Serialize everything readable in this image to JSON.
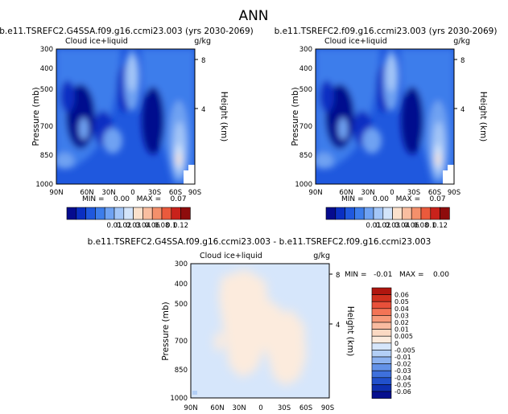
{
  "figure": {
    "title": "ANN"
  },
  "chart_data": [
    {
      "type": "heatmap",
      "title": "b.e11.TSREFC2.G4SSA.f09.g16.ccmi23.003 (yrs 2030-2069)",
      "subtitle_left": "Cloud ice+liquid",
      "units": "g/kg",
      "ylabel": "Pressure (mb)",
      "ylabel_right": "Height (km)",
      "x_ticks": [
        "90N",
        "60N",
        "30N",
        "0",
        "30S",
        "60S",
        "90S"
      ],
      "y_ticks": [
        "300",
        "400",
        "500",
        "700",
        "850",
        "1000"
      ],
      "y_right_ticks": [
        "8",
        "4"
      ],
      "ylim": [
        1000,
        300
      ],
      "min_max_label": "MIN =    0.00   MAX =    0.07",
      "colorbar": {
        "levels": [
          "0.01",
          "0.02",
          "0.03",
          "0.04",
          "0.06",
          "0.08",
          "0.1",
          "0.12"
        ],
        "colors": [
          "#050B8E",
          "#0A2FC2",
          "#1F58DE",
          "#3D7DEB",
          "#6FA2F2",
          "#A4C6F7",
          "#D3E4FA",
          "#FBE1CC",
          "#F9BEA0",
          "#F4906B",
          "#EA5A3C",
          "#C9221B",
          "#8E0C0C"
        ]
      }
    },
    {
      "type": "heatmap",
      "title": "b.e11.TSREFC2.f09.g16.ccmi23.003 (yrs 2030-2069)",
      "subtitle_left": "Cloud ice+liquid",
      "units": "g/kg",
      "ylabel": "Pressure (mb)",
      "ylabel_right": "Height (km)",
      "x_ticks": [
        "90N",
        "60N",
        "30N",
        "0",
        "30S",
        "60S",
        "90S"
      ],
      "y_ticks": [
        "300",
        "400",
        "500",
        "700",
        "850",
        "1000"
      ],
      "y_right_ticks": [
        "8",
        "4"
      ],
      "ylim": [
        1000,
        300
      ],
      "min_max_label": "MIN =    0.00   MAX =    0.07",
      "colorbar": {
        "levels": [
          "0.01",
          "0.02",
          "0.03",
          "0.04",
          "0.06",
          "0.08",
          "0.1",
          "0.12"
        ],
        "colors": [
          "#050B8E",
          "#0A2FC2",
          "#1F58DE",
          "#3D7DEB",
          "#6FA2F2",
          "#A4C6F7",
          "#D3E4FA",
          "#FBE1CC",
          "#F9BEA0",
          "#F4906B",
          "#EA5A3C",
          "#C9221B",
          "#8E0C0C"
        ]
      }
    },
    {
      "type": "heatmap",
      "title": "b.e11.TSREFC2.G4SSA.f09.g16.ccmi23.003 - b.e11.TSREFC2.f09.g16.ccmi23.003",
      "subtitle_left": "Cloud ice+liquid",
      "units": "g/kg",
      "ylabel": "Pressure (mb)",
      "ylabel_right": "Height (km)",
      "x_ticks": [
        "90N",
        "60N",
        "30N",
        "0",
        "30S",
        "60S",
        "90S"
      ],
      "y_ticks": [
        "300",
        "400",
        "500",
        "700",
        "850",
        "1000"
      ],
      "y_right_ticks": [
        "8",
        "4"
      ],
      "ylim": [
        1000,
        300
      ],
      "min_max_label": "MIN =   -0.01   MAX =    0.00",
      "colorbar": {
        "levels": [
          "0.06",
          "0.05",
          "0.04",
          "0.03",
          "0.02",
          "0.01",
          "0.005",
          "0",
          "-0.005",
          "-0.01",
          "-0.02",
          "-0.03",
          "-0.04",
          "-0.05",
          "-0.06"
        ],
        "colors": [
          "#B0160F",
          "#D0301E",
          "#E8503A",
          "#F37456",
          "#F79A7A",
          "#F9BBA0",
          "#FBD9C3",
          "#FCEBDD",
          "#D6E6FB",
          "#B3CFF6",
          "#8CB2F0",
          "#6392E8",
          "#3E70DC",
          "#2150CB",
          "#0E2FB0",
          "#050F8E"
        ]
      }
    }
  ]
}
